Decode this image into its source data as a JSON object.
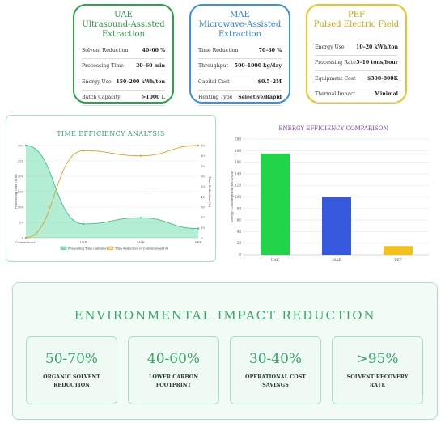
{
  "cards": [
    {
      "title1": "UAE",
      "title2": "Ultrasound-Assisted",
      "title3": "Extraction",
      "rows": [
        {
          "k": "Solvent Reduction",
          "v": "40–60 %"
        },
        {
          "k": "Processing Time",
          "v": "30–60 min"
        },
        {
          "k": "Energy Use",
          "v": "150–200 kWh/ton"
        },
        {
          "k": "Batch Capacity",
          "v": ">1000 L"
        }
      ]
    },
    {
      "title1": "MAE",
      "title2": "Microwave-Assisted",
      "title3": "Extraction",
      "rows": [
        {
          "k": "Time Reduction",
          "v": "70–80 %"
        },
        {
          "k": "Throughput",
          "v": "500–1000 kg/day"
        },
        {
          "k": "Capital Cost",
          "v": "$0.5–2M"
        },
        {
          "k": "Heating Type",
          "v": "Selective/Rapid"
        }
      ]
    },
    {
      "title1": "PEF",
      "title2": "Pulsed Electric Field",
      "title3": "",
      "rows": [
        {
          "k": "Energy Use",
          "v": "10–20 kWh/ton"
        },
        {
          "k": "Processing Rate",
          "v": "5–10 tons/hour"
        },
        {
          "k": "Equipment Cost",
          "v": "$300-800K"
        },
        {
          "k": "Thermal Impact",
          "v": "Minimal"
        }
      ]
    }
  ],
  "chart_data": [
    {
      "type": "line",
      "title": "TIME EFFICIENCY ANALYSIS",
      "categories": [
        "Conventional",
        "UAE",
        "MAE",
        "PEF"
      ],
      "ylabel": "Processing Time (min)",
      "y2label": "Time Reduction (%)",
      "ylim": [
        0,
        300
      ],
      "y2lim": [
        0,
        90
      ],
      "yticks": [
        "0",
        "50",
        "100",
        "150",
        "200",
        "250",
        "300"
      ],
      "y2ticks": [
        "0",
        "10",
        "20",
        "30",
        "40",
        "50",
        "60",
        "70",
        "80",
        "90"
      ],
      "series": [
        {
          "name": "Processing Time (minutes)",
          "axis": "left",
          "color": "#3cc58a",
          "fill": true,
          "values": [
            300,
            45,
            65,
            30
          ]
        },
        {
          "name": "Time Reduction vs Conventional (%)",
          "axis": "right",
          "color": "#e0a020",
          "fill": false,
          "values": [
            0,
            85,
            80,
            90
          ]
        }
      ],
      "legend": "bottom",
      "annotation": [
        "...",
        "... ...... ......",
        "... ......"
      ]
    },
    {
      "type": "bar",
      "title": "ENERGY EFFICIENCY COMPARISON",
      "categories": [
        "UAE",
        "MAE",
        "PEF"
      ],
      "values": [
        175,
        100,
        15
      ],
      "colors": [
        "#22d44a",
        "#3658dd",
        "#f2c21a"
      ],
      "ylabel": "Energy Consumption (kWh/ton)",
      "ylim": [
        0,
        200
      ],
      "yticks": [
        "0",
        "20",
        "40",
        "60",
        "80",
        "100",
        "120",
        "140",
        "160",
        "180",
        "200"
      ]
    }
  ],
  "environment": {
    "title": "ENVIRONMENTAL IMPACT REDUCTION",
    "stats": [
      {
        "num": "50-70%",
        "lbl": "ORGANIC SOLVENT REDUCTION"
      },
      {
        "num": "40-60%",
        "lbl": "LOWER CARBON FOOTPRINT"
      },
      {
        "num": "30-40%",
        "lbl": "OPERATIONAL COST SAVINGS"
      },
      {
        "num": ">95%",
        "lbl": "SOLVENT RECOVERY RATE"
      }
    ]
  }
}
